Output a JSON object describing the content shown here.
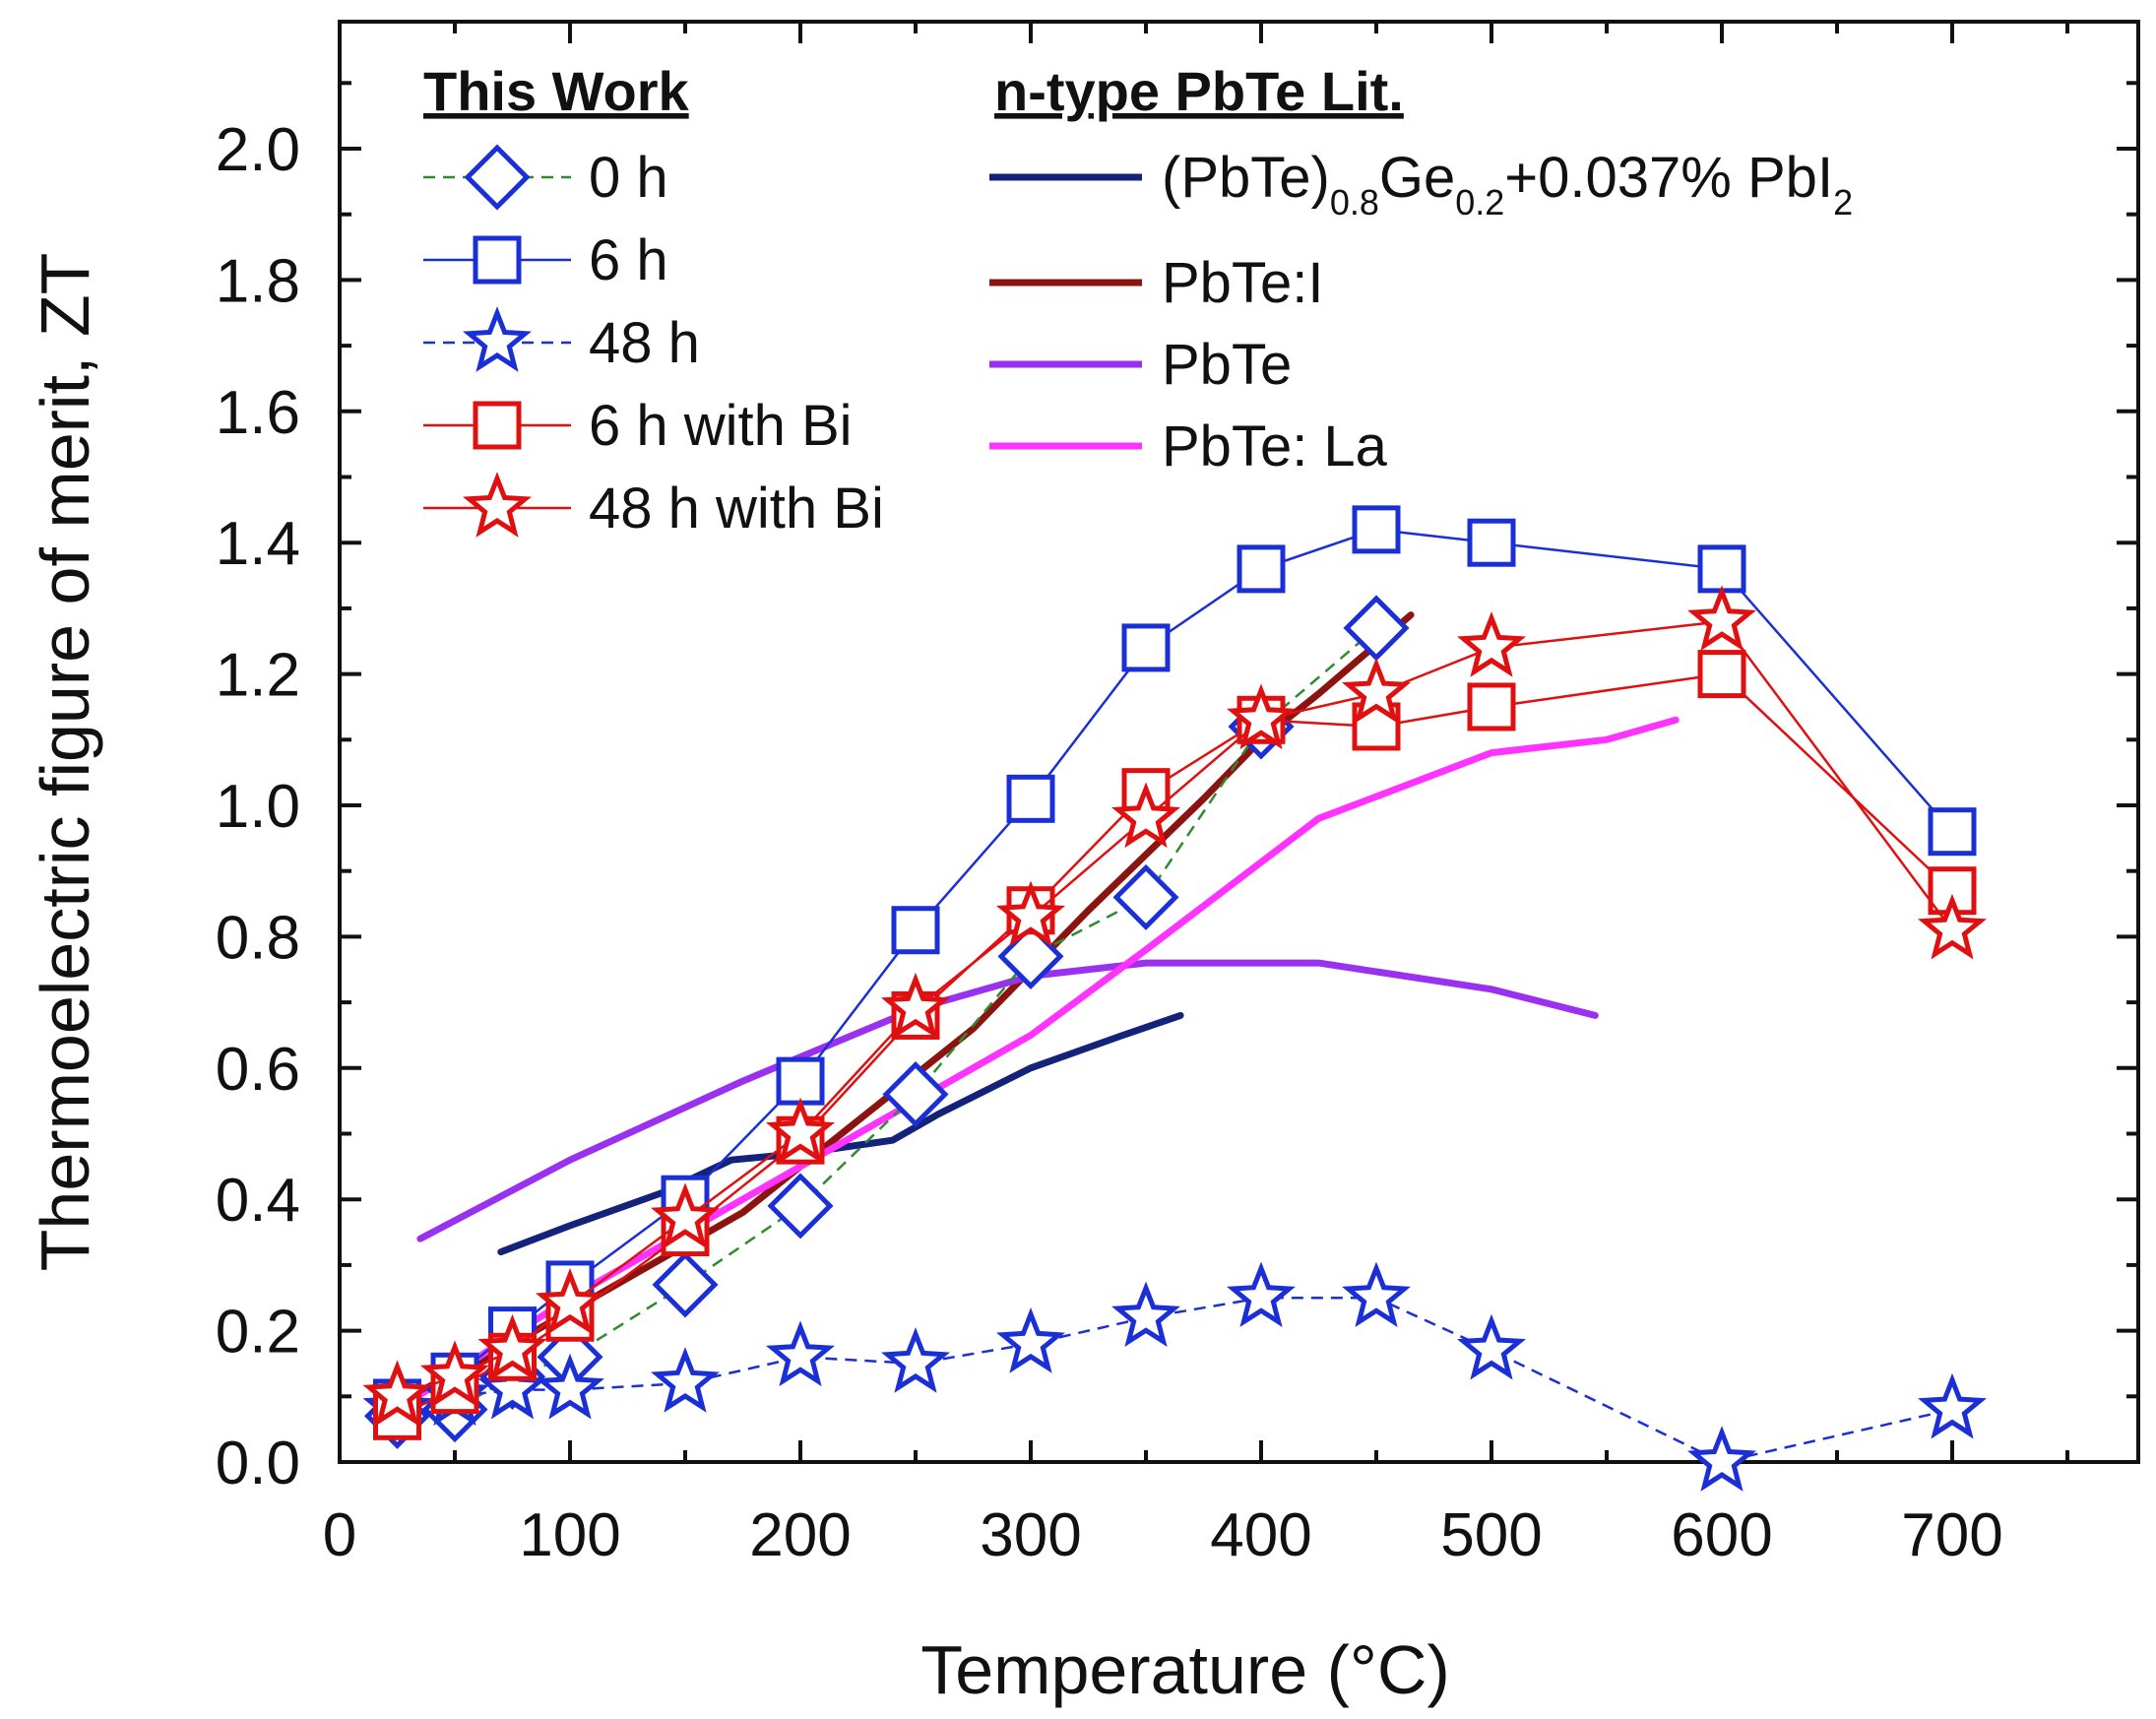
{
  "chart_data": {
    "type": "line",
    "title": "",
    "xlabel": "Temperature (°C)",
    "ylabel": "Thermoelectric figure of merit, ZT",
    "xlim": [
      0,
      780
    ],
    "ylim": [
      0,
      2.2
    ],
    "xticks": [
      "0",
      "100",
      "200",
      "300",
      "400",
      "500",
      "600",
      "700"
    ],
    "yticks": [
      "0.0",
      "0.2",
      "0.4",
      "0.6",
      "0.8",
      "1.0",
      "1.2",
      "1.4",
      "1.6",
      "1.8",
      "2.0"
    ],
    "legend_left_title": "This Work",
    "legend_right_title": "n-type PbTe Lit.",
    "series": [
      {
        "name": "0 h",
        "group": "this_work",
        "marker": "diamond",
        "line_color": "#2e8b2e",
        "marker_color": "#1b2fd6",
        "dash": "12,8",
        "x": [
          25,
          50,
          75,
          100,
          150,
          200,
          250,
          300,
          350,
          400,
          450
        ],
        "y": [
          0.07,
          0.08,
          0.13,
          0.16,
          0.27,
          0.39,
          0.56,
          0.77,
          0.86,
          1.12,
          1.27
        ]
      },
      {
        "name": "6 h",
        "group": "this_work",
        "marker": "square",
        "line_color": "#1b2fd6",
        "marker_color": "#1b2fd6",
        "dash": "",
        "x": [
          25,
          50,
          75,
          100,
          150,
          200,
          250,
          300,
          350,
          400,
          450,
          500,
          600,
          700
        ],
        "y": [
          0.09,
          0.13,
          0.2,
          0.27,
          0.4,
          0.58,
          0.81,
          1.01,
          1.24,
          1.36,
          1.42,
          1.4,
          1.36,
          0.96
        ]
      },
      {
        "name": "48 h",
        "group": "this_work",
        "marker": "star",
        "line_color": "#1b2fd6",
        "marker_color": "#1b2fd6",
        "dash": "12,8",
        "x": [
          25,
          50,
          75,
          100,
          150,
          200,
          250,
          300,
          350,
          400,
          450,
          500,
          600,
          700
        ],
        "y": [
          0.08,
          0.1,
          0.11,
          0.11,
          0.12,
          0.16,
          0.15,
          0.18,
          0.22,
          0.25,
          0.25,
          0.17,
          0.0,
          0.08
        ]
      },
      {
        "name": "6 h with Bi",
        "group": "this_work",
        "marker": "square",
        "line_color": "#e01010",
        "marker_color": "#e01010",
        "dash": "",
        "x": [
          25,
          50,
          75,
          100,
          150,
          200,
          250,
          300,
          350,
          400,
          450,
          500,
          600,
          700
        ],
        "y": [
          0.07,
          0.11,
          0.16,
          0.22,
          0.35,
          0.49,
          0.68,
          0.84,
          1.02,
          1.13,
          1.12,
          1.15,
          1.2,
          0.87
        ]
      },
      {
        "name": "48 h with Bi",
        "group": "this_work",
        "marker": "star",
        "line_color": "#e01010",
        "marker_color": "#e01010",
        "dash": "",
        "x": [
          25,
          50,
          75,
          100,
          150,
          200,
          250,
          300,
          350,
          400,
          450,
          500,
          600,
          700
        ],
        "y": [
          0.1,
          0.13,
          0.17,
          0.24,
          0.37,
          0.5,
          0.69,
          0.83,
          0.98,
          1.13,
          1.17,
          1.24,
          1.28,
          0.81
        ]
      },
      {
        "name_parts": [
          "(PbTe)",
          "0.8",
          "Ge",
          "0.2",
          "+0.037% PbI",
          "2"
        ],
        "group": "literature",
        "marker": "none",
        "line_color": "#13237a",
        "marker_color": "#13237a",
        "dash": "",
        "x": [
          70,
          100,
          140,
          170,
          200,
          240,
          260,
          300,
          340,
          365
        ],
        "y": [
          0.32,
          0.36,
          0.41,
          0.46,
          0.47,
          0.49,
          0.53,
          0.6,
          0.65,
          0.68
        ]
      },
      {
        "name": "PbTe:I",
        "group": "literature",
        "marker": "none",
        "line_color": "#8b1410",
        "marker_color": "#8b1410",
        "dash": "",
        "x": [
          25,
          75,
          125,
          175,
          225,
          275,
          325,
          375,
          400,
          425,
          465
        ],
        "y": [
          0.09,
          0.18,
          0.28,
          0.38,
          0.52,
          0.66,
          0.84,
          1.01,
          1.1,
          1.17,
          1.29
        ]
      },
      {
        "name": "PbTe",
        "group": "literature",
        "marker": "none",
        "line_color": "#9a30f0",
        "marker_color": "#9a30f0",
        "dash": "",
        "x": [
          35,
          100,
          175,
          250,
          300,
          350,
          425,
          500,
          545
        ],
        "y": [
          0.34,
          0.46,
          0.58,
          0.69,
          0.74,
          0.76,
          0.76,
          0.72,
          0.68
        ]
      },
      {
        "name": "PbTe: La",
        "group": "literature",
        "marker": "none",
        "line_color": "#ff33ff",
        "marker_color": "#ff33ff",
        "dash": "",
        "x": [
          25,
          100,
          200,
          300,
          350,
          425,
          500,
          550,
          580
        ],
        "y": [
          0.08,
          0.25,
          0.45,
          0.65,
          0.78,
          0.98,
          1.08,
          1.1,
          1.13
        ]
      }
    ]
  }
}
